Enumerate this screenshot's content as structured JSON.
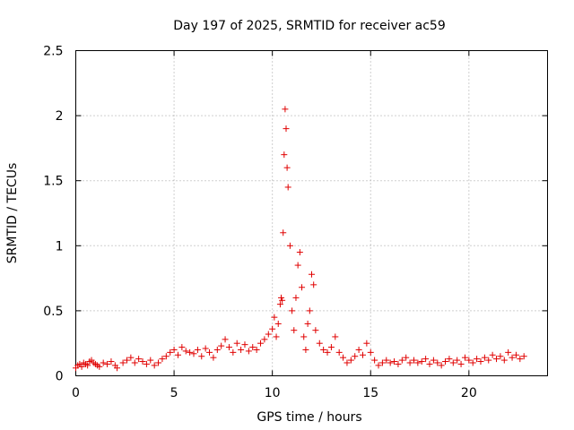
{
  "chart_data": {
    "type": "scatter",
    "title": "Day 197 of 2025, SRMTID for receiver ac59",
    "xlabel": "GPS time / hours",
    "ylabel": "SRMTID / TECUs",
    "xlim": [
      0,
      24
    ],
    "ylim": [
      0,
      2.5
    ],
    "x_ticks": [
      0,
      5,
      10,
      15,
      20
    ],
    "x_tick_labels": [
      "0",
      "5",
      "10",
      "15",
      "20"
    ],
    "y_ticks": [
      0,
      0.5,
      1,
      1.5,
      2,
      2.5
    ],
    "y_tick_labels": [
      "0",
      "0.5",
      "1",
      "1.5",
      "2",
      "2.5"
    ],
    "grid": true,
    "marker": "plus",
    "marker_color": "#e00000",
    "series": [
      {
        "name": "SRMTID",
        "x": [
          0.0,
          0.1,
          0.2,
          0.3,
          0.4,
          0.5,
          0.6,
          0.7,
          0.8,
          0.9,
          1.0,
          1.1,
          1.2,
          1.4,
          1.6,
          1.8,
          2.0,
          2.1,
          2.4,
          2.6,
          2.8,
          3.0,
          3.2,
          3.4,
          3.6,
          3.8,
          4.0,
          4.2,
          4.4,
          4.6,
          4.8,
          5.0,
          5.2,
          5.4,
          5.6,
          5.8,
          6.0,
          6.2,
          6.4,
          6.6,
          6.8,
          7.0,
          7.2,
          7.4,
          7.6,
          7.8,
          8.0,
          8.2,
          8.4,
          8.6,
          8.8,
          9.0,
          9.2,
          9.4,
          9.6,
          9.8,
          10.0,
          10.1,
          10.2,
          10.3,
          10.4,
          10.45,
          10.5,
          10.55,
          10.6,
          10.65,
          10.7,
          10.75,
          10.8,
          10.9,
          11.0,
          11.1,
          11.2,
          11.3,
          11.4,
          11.5,
          11.6,
          11.7,
          11.8,
          11.9,
          12.0,
          12.1,
          12.2,
          12.4,
          12.6,
          12.8,
          13.0,
          13.2,
          13.4,
          13.6,
          13.8,
          14.0,
          14.2,
          14.4,
          14.6,
          14.8,
          15.0,
          15.2,
          15.4,
          15.6,
          15.8,
          16.0,
          16.2,
          16.4,
          16.6,
          16.8,
          17.0,
          17.2,
          17.4,
          17.6,
          17.8,
          18.0,
          18.2,
          18.4,
          18.6,
          18.8,
          19.0,
          19.2,
          19.4,
          19.6,
          19.8,
          20.0,
          20.2,
          20.4,
          20.6,
          20.8,
          21.0,
          21.2,
          21.4,
          21.6,
          21.8,
          22.0,
          22.2,
          22.4,
          22.6,
          22.8
        ],
        "y": [
          0.06,
          0.08,
          0.09,
          0.07,
          0.1,
          0.09,
          0.08,
          0.11,
          0.12,
          0.1,
          0.09,
          0.08,
          0.07,
          0.1,
          0.09,
          0.11,
          0.08,
          0.06,
          0.1,
          0.12,
          0.14,
          0.1,
          0.13,
          0.11,
          0.09,
          0.12,
          0.08,
          0.1,
          0.13,
          0.15,
          0.18,
          0.2,
          0.16,
          0.22,
          0.19,
          0.18,
          0.17,
          0.2,
          0.15,
          0.21,
          0.18,
          0.14,
          0.2,
          0.23,
          0.28,
          0.22,
          0.18,
          0.25,
          0.2,
          0.24,
          0.19,
          0.22,
          0.2,
          0.25,
          0.28,
          0.32,
          0.36,
          0.45,
          0.3,
          0.4,
          0.55,
          0.6,
          0.58,
          1.1,
          1.7,
          2.05,
          1.9,
          1.6,
          1.45,
          1.0,
          0.5,
          0.35,
          0.6,
          0.85,
          0.95,
          0.68,
          0.3,
          0.2,
          0.4,
          0.5,
          0.78,
          0.7,
          0.35,
          0.25,
          0.2,
          0.18,
          0.22,
          0.3,
          0.18,
          0.14,
          0.1,
          0.12,
          0.15,
          0.2,
          0.16,
          0.25,
          0.18,
          0.12,
          0.08,
          0.1,
          0.12,
          0.1,
          0.11,
          0.09,
          0.12,
          0.14,
          0.1,
          0.12,
          0.1,
          0.11,
          0.13,
          0.09,
          0.12,
          0.1,
          0.08,
          0.11,
          0.13,
          0.1,
          0.12,
          0.09,
          0.14,
          0.12,
          0.1,
          0.13,
          0.11,
          0.14,
          0.12,
          0.16,
          0.13,
          0.15,
          0.12,
          0.18,
          0.14,
          0.16,
          0.13,
          0.15
        ]
      }
    ]
  }
}
